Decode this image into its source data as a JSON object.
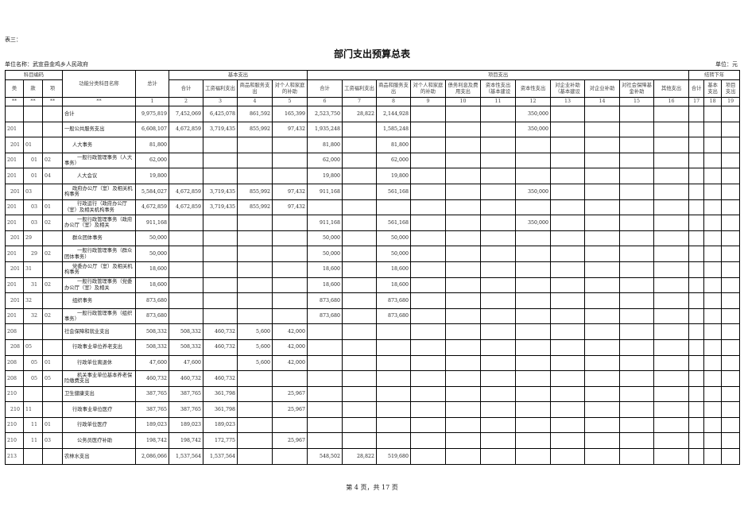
{
  "doc": {
    "tag": "表三：",
    "title": "部门支出预算总表",
    "unit_name": "单位名称：武宣县金鸡乡人民政府",
    "unit": "单位：元",
    "footer": "第 4 页，共 17 页"
  },
  "header": {
    "code_group": "科目编码",
    "lei": "类",
    "kuan": "款",
    "xiang": "项",
    "name": "功能分类科目名称",
    "total": "总计",
    "basic_group": "基本支出",
    "project_group": "项目支出",
    "carry_group": "结转下年",
    "basic_cols": [
      "合计",
      "工资福利支出",
      "商品和服务支出",
      "对个人和家庭的补助"
    ],
    "project_cols": [
      "合计",
      "工资福利支出",
      "商品和服务支出",
      "对个人和家庭的补助",
      "债务利息及费用支出",
      "资本性支出（基本建设",
      "资本性支出",
      "对企业补助（基本建设",
      "对企业补助",
      "对社会保障基金补助",
      "其他支出"
    ],
    "carry_cols": [
      "合计",
      "基本支出",
      "项目支出"
    ],
    "stars": [
      "**",
      "**",
      "**",
      "**"
    ],
    "col_numbers": [
      "1",
      "2",
      "3",
      "4",
      "5",
      "6",
      "7",
      "8",
      "9",
      "10",
      "11",
      "12",
      "13",
      "14",
      "15",
      "16",
      "17",
      "18",
      "19"
    ]
  },
  "rows": [
    {
      "code": [
        "",
        "",
        ""
      ],
      "indent": 0,
      "name": "合计",
      "values": [
        "9,975,819",
        "7,452,069",
        "6,425,078",
        "861,592",
        "165,399",
        "2,523,750",
        "28,822",
        "2,144,928",
        "",
        "",
        "",
        "350,000",
        "",
        "",
        "",
        "",
        "",
        "",
        ""
      ]
    },
    {
      "code": [
        "201",
        "",
        ""
      ],
      "indent": 0,
      "name": "一般公共服务支出",
      "values": [
        "6,608,107",
        "4,672,859",
        "3,719,435",
        "855,992",
        "97,432",
        "1,935,248",
        "",
        "1,585,248",
        "",
        "",
        "",
        "350,000",
        "",
        "",
        "",
        "",
        "",
        "",
        ""
      ]
    },
    {
      "code": [
        "201",
        "01",
        ""
      ],
      "indent": 1,
      "name": "人大事务",
      "values": [
        "81,800",
        "",
        "",
        "",
        "",
        "81,800",
        "",
        "81,800",
        "",
        "",
        "",
        "",
        "",
        "",
        "",
        "",
        "",
        "",
        ""
      ]
    },
    {
      "code": [
        "201",
        "01",
        "02"
      ],
      "indent": 2,
      "name": "一般行政管理事务（人大事务）",
      "values": [
        "62,000",
        "",
        "",
        "",
        "",
        "62,000",
        "",
        "62,000",
        "",
        "",
        "",
        "",
        "",
        "",
        "",
        "",
        "",
        "",
        ""
      ]
    },
    {
      "code": [
        "201",
        "01",
        "04"
      ],
      "indent": 2,
      "name": "人大会议",
      "values": [
        "19,800",
        "",
        "",
        "",
        "",
        "19,800",
        "",
        "19,800",
        "",
        "",
        "",
        "",
        "",
        "",
        "",
        "",
        "",
        "",
        ""
      ]
    },
    {
      "code": [
        "201",
        "03",
        ""
      ],
      "indent": 1,
      "name": "政府办公厅（室）及相关机构事务",
      "values": [
        "5,584,027",
        "4,672,859",
        "3,719,435",
        "855,992",
        "97,432",
        "911,168",
        "",
        "561,168",
        "",
        "",
        "",
        "350,000",
        "",
        "",
        "",
        "",
        "",
        "",
        ""
      ]
    },
    {
      "code": [
        "201",
        "03",
        "01"
      ],
      "indent": 2,
      "name": "行政运行（政府办公厅（室）及相关机构事务",
      "values": [
        "4,672,859",
        "4,672,859",
        "3,719,435",
        "855,992",
        "97,432",
        "",
        "",
        "",
        "",
        "",
        "",
        "",
        "",
        "",
        "",
        "",
        "",
        "",
        ""
      ]
    },
    {
      "code": [
        "201",
        "03",
        "02"
      ],
      "indent": 2,
      "name": "一般行政管理事务（政府办公厅（室）及相关",
      "values": [
        "911,168",
        "",
        "",
        "",
        "",
        "911,168",
        "",
        "561,168",
        "",
        "",
        "",
        "350,000",
        "",
        "",
        "",
        "",
        "",
        "",
        ""
      ]
    },
    {
      "code": [
        "201",
        "29",
        ""
      ],
      "indent": 1,
      "name": "群众团体事务",
      "values": [
        "50,000",
        "",
        "",
        "",
        "",
        "50,000",
        "",
        "50,000",
        "",
        "",
        "",
        "",
        "",
        "",
        "",
        "",
        "",
        "",
        ""
      ]
    },
    {
      "code": [
        "201",
        "29",
        "02"
      ],
      "indent": 2,
      "name": "一般行政管理事务（群众团体事务）",
      "values": [
        "50,000",
        "",
        "",
        "",
        "",
        "50,000",
        "",
        "50,000",
        "",
        "",
        "",
        "",
        "",
        "",
        "",
        "",
        "",
        "",
        ""
      ]
    },
    {
      "code": [
        "201",
        "31",
        ""
      ],
      "indent": 1,
      "name": "党委办公厅（室）及相关机构事务",
      "values": [
        "18,600",
        "",
        "",
        "",
        "",
        "18,600",
        "",
        "18,600",
        "",
        "",
        "",
        "",
        "",
        "",
        "",
        "",
        "",
        "",
        ""
      ]
    },
    {
      "code": [
        "201",
        "31",
        "02"
      ],
      "indent": 2,
      "name": "一般行政管理事务（党委办公厅（室）及相关",
      "values": [
        "18,600",
        "",
        "",
        "",
        "",
        "18,600",
        "",
        "18,600",
        "",
        "",
        "",
        "",
        "",
        "",
        "",
        "",
        "",
        "",
        ""
      ]
    },
    {
      "code": [
        "201",
        "32",
        ""
      ],
      "indent": 1,
      "name": "组织事务",
      "values": [
        "873,680",
        "",
        "",
        "",
        "",
        "873,680",
        "",
        "873,680",
        "",
        "",
        "",
        "",
        "",
        "",
        "",
        "",
        "",
        "",
        ""
      ]
    },
    {
      "code": [
        "201",
        "32",
        "02"
      ],
      "indent": 2,
      "name": "一般行政管理事务（组织事务）",
      "values": [
        "873,680",
        "",
        "",
        "",
        "",
        "873,680",
        "",
        "873,680",
        "",
        "",
        "",
        "",
        "",
        "",
        "",
        "",
        "",
        "",
        ""
      ]
    },
    {
      "code": [
        "208",
        "",
        ""
      ],
      "indent": 0,
      "name": "社会保障和就业支出",
      "values": [
        "508,332",
        "508,332",
        "460,732",
        "5,600",
        "42,000",
        "",
        "",
        "",
        "",
        "",
        "",
        "",
        "",
        "",
        "",
        "",
        "",
        "",
        ""
      ]
    },
    {
      "code": [
        "208",
        "05",
        ""
      ],
      "indent": 1,
      "name": "行政事业单位养老支出",
      "values": [
        "508,332",
        "508,332",
        "460,732",
        "5,600",
        "42,000",
        "",
        "",
        "",
        "",
        "",
        "",
        "",
        "",
        "",
        "",
        "",
        "",
        "",
        ""
      ]
    },
    {
      "code": [
        "208",
        "05",
        "01"
      ],
      "indent": 2,
      "name": "行政单位离退休",
      "values": [
        "47,600",
        "47,600",
        "",
        "5,600",
        "42,000",
        "",
        "",
        "",
        "",
        "",
        "",
        "",
        "",
        "",
        "",
        "",
        "",
        "",
        ""
      ]
    },
    {
      "code": [
        "208",
        "05",
        "05"
      ],
      "indent": 2,
      "name": "机关事业单位基本养老保险缴费支出",
      "values": [
        "460,732",
        "460,732",
        "460,732",
        "",
        "",
        "",
        "",
        "",
        "",
        "",
        "",
        "",
        "",
        "",
        "",
        "",
        "",
        "",
        ""
      ]
    },
    {
      "code": [
        "210",
        "",
        ""
      ],
      "indent": 0,
      "name": "卫生健康支出",
      "values": [
        "387,765",
        "387,765",
        "361,798",
        "",
        "25,967",
        "",
        "",
        "",
        "",
        "",
        "",
        "",
        "",
        "",
        "",
        "",
        "",
        "",
        ""
      ]
    },
    {
      "code": [
        "210",
        "11",
        ""
      ],
      "indent": 1,
      "name": "行政事业单位医疗",
      "values": [
        "387,765",
        "387,765",
        "361,798",
        "",
        "25,967",
        "",
        "",
        "",
        "",
        "",
        "",
        "",
        "",
        "",
        "",
        "",
        "",
        "",
        ""
      ]
    },
    {
      "code": [
        "210",
        "11",
        "01"
      ],
      "indent": 2,
      "name": "行政单位医疗",
      "values": [
        "189,023",
        "189,023",
        "189,023",
        "",
        "",
        "",
        "",
        "",
        "",
        "",
        "",
        "",
        "",
        "",
        "",
        "",
        "",
        "",
        ""
      ]
    },
    {
      "code": [
        "210",
        "11",
        "03"
      ],
      "indent": 2,
      "name": "公务员医疗补助",
      "values": [
        "198,742",
        "198,742",
        "172,775",
        "",
        "25,967",
        "",
        "",
        "",
        "",
        "",
        "",
        "",
        "",
        "",
        "",
        "",
        "",
        "",
        ""
      ]
    },
    {
      "code": [
        "213",
        "",
        ""
      ],
      "indent": 0,
      "name": "农林水支出",
      "values": [
        "2,086,066",
        "1,537,564",
        "1,537,564",
        "",
        "",
        "548,502",
        "28,822",
        "519,680",
        "",
        "",
        "",
        "",
        "",
        "",
        "",
        "",
        "",
        "",
        ""
      ]
    }
  ]
}
